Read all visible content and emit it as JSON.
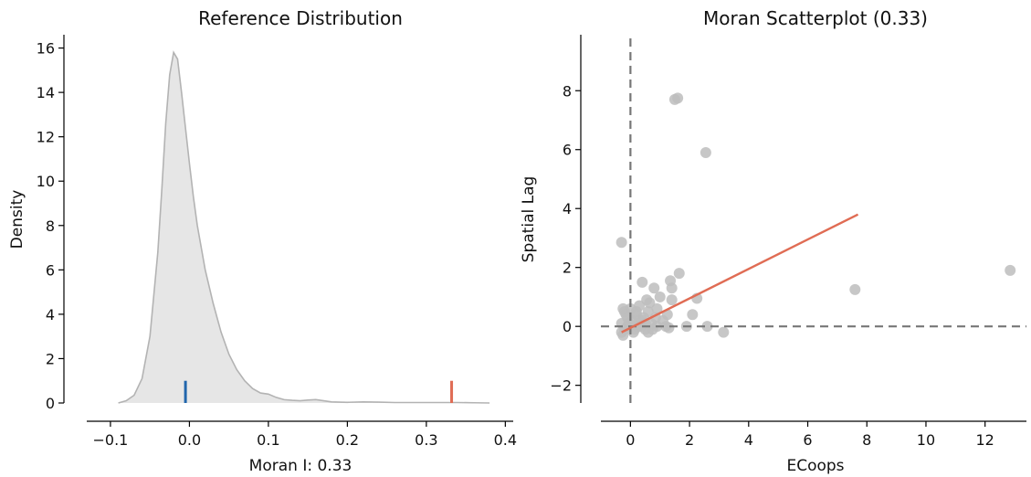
{
  "chart_data": [
    {
      "type": "area",
      "title": "Reference Distribution",
      "xlabel": "Moran I: 0.33",
      "ylabel": "Density",
      "xlim": [
        -0.13,
        0.41
      ],
      "ylim": [
        0,
        16.6
      ],
      "xticks": [
        -0.1,
        0.0,
        0.1,
        0.2,
        0.3,
        0.4
      ],
      "xtick_labels": [
        "−0.1",
        "0.0",
        "0.1",
        "0.2",
        "0.3",
        "0.4"
      ],
      "yticks": [
        0,
        2,
        4,
        6,
        8,
        10,
        12,
        14,
        16
      ],
      "ytick_labels": [
        "0",
        "2",
        "4",
        "6",
        "8",
        "10",
        "12",
        "14",
        "16"
      ],
      "grid": false,
      "density": {
        "x": [
          -0.09,
          -0.08,
          -0.07,
          -0.06,
          -0.05,
          -0.04,
          -0.035,
          -0.03,
          -0.025,
          -0.02,
          -0.015,
          -0.01,
          -0.005,
          0.0,
          0.005,
          0.01,
          0.02,
          0.03,
          0.04,
          0.05,
          0.06,
          0.07,
          0.08,
          0.09,
          0.1,
          0.11,
          0.12,
          0.13,
          0.14,
          0.15,
          0.16,
          0.17,
          0.18,
          0.2,
          0.22,
          0.24,
          0.26,
          0.28,
          0.3,
          0.32,
          0.34,
          0.36,
          0.38
        ],
        "y": [
          0.0,
          0.1,
          0.35,
          1.1,
          3.0,
          6.8,
          9.6,
          12.6,
          14.8,
          15.8,
          15.5,
          14.0,
          12.4,
          10.8,
          9.3,
          8.0,
          6.0,
          4.5,
          3.2,
          2.2,
          1.5,
          1.0,
          0.65,
          0.45,
          0.4,
          0.25,
          0.15,
          0.12,
          0.1,
          0.13,
          0.15,
          0.1,
          0.05,
          0.03,
          0.05,
          0.04,
          0.02,
          0.02,
          0.02,
          0.02,
          0.02,
          0.01,
          0.0
        ]
      },
      "fill_color": "#e6e6e6",
      "line_color": "#b3b3b3",
      "markers": [
        {
          "x": -0.005,
          "height": 1.0,
          "color": "#2166ac"
        },
        {
          "x": 0.332,
          "height": 1.0,
          "color": "#e06c54"
        }
      ]
    },
    {
      "type": "scatter",
      "title": "Moran Scatterplot (0.33)",
      "xlabel": "ECoops",
      "ylabel": "Spatial Lag",
      "xlim": [
        -1.0,
        13.4
      ],
      "ylim": [
        -2.6,
        9.9
      ],
      "xticks": [
        0,
        2,
        4,
        6,
        8,
        10,
        12
      ],
      "xtick_labels": [
        "0",
        "2",
        "4",
        "6",
        "8",
        "10",
        "12"
      ],
      "yticks": [
        -2,
        0,
        2,
        4,
        6,
        8
      ],
      "ytick_labels": [
        "−2",
        "0",
        "2",
        "4",
        "6",
        "8"
      ],
      "grid": false,
      "point_color": "#bdbdbd",
      "fit_line_color": "#e06c54",
      "axis_line_color": "#777777",
      "fit_line": {
        "x": [
          -0.3,
          7.7
        ],
        "y": [
          -0.2,
          3.8
        ]
      },
      "points": {
        "x": [
          1.5,
          1.6,
          2.55,
          -0.3,
          12.85,
          7.6,
          0.4,
          1.35,
          1.65,
          1.4,
          0.8,
          2.1,
          2.25,
          1.4,
          1.0,
          0.55,
          0.3,
          0.6,
          0.0,
          0.2,
          1.9,
          2.6,
          3.15,
          1.2,
          1.1,
          0.85,
          0.5,
          0.25,
          0.15,
          0.05,
          -0.1,
          -0.2,
          -0.25,
          -0.3,
          -0.3,
          -0.2,
          -0.1,
          0.1,
          0.3,
          0.5,
          0.7,
          0.9,
          1.25,
          0.45,
          0.65,
          -0.15,
          0.35,
          0.75,
          -0.25,
          -0.05,
          0.2,
          0.4,
          0.9,
          0.6,
          1.3
        ],
        "y": [
          7.7,
          7.75,
          5.9,
          2.85,
          1.9,
          1.25,
          1.5,
          1.55,
          1.8,
          1.3,
          1.3,
          0.4,
          0.95,
          0.9,
          1.0,
          0.9,
          0.7,
          0.5,
          0.6,
          0.4,
          0.0,
          0.0,
          -0.2,
          0.0,
          0.2,
          0.3,
          0.1,
          0.0,
          -0.1,
          0.2,
          0.3,
          0.5,
          0.6,
          0.1,
          -0.2,
          -0.1,
          0.0,
          -0.2,
          0.2,
          -0.1,
          0.1,
          0.0,
          0.4,
          0.3,
          0.8,
          0.4,
          0.0,
          -0.1,
          -0.3,
          0.1,
          0.5,
          0.2,
          0.6,
          -0.2,
          -0.05
        ]
      }
    }
  ]
}
